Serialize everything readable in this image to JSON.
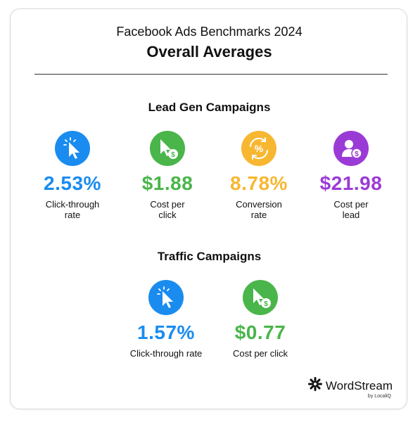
{
  "header": {
    "subtitle": "Facebook Ads Benchmarks 2024",
    "title": "Overall Averages"
  },
  "lead_gen": {
    "heading": "Lead Gen Campaigns",
    "metrics": [
      {
        "value": "2.53%",
        "label": "Click-through\nrate",
        "icon": "cursor-click-icon",
        "color": "#1a8cf0"
      },
      {
        "value": "$1.88",
        "label": "Cost per\nclick",
        "icon": "cursor-dollar-icon",
        "color": "#4ab54a"
      },
      {
        "value": "8.78%",
        "label": "Conversion\nrate",
        "icon": "percent-cycle-icon",
        "color": "#f7b731"
      },
      {
        "value": "$21.98",
        "label": "Cost per\nlead",
        "icon": "user-dollar-icon",
        "color": "#9b3bd6"
      }
    ]
  },
  "traffic": {
    "heading": "Traffic Campaigns",
    "metrics": [
      {
        "value": "1.57%",
        "label": "Click-through rate",
        "icon": "cursor-click-icon",
        "color": "#1a8cf0"
      },
      {
        "value": "$0.77",
        "label": "Cost per click",
        "icon": "cursor-dollar-icon",
        "color": "#4ab54a"
      }
    ]
  },
  "logo": {
    "name": "WordStream",
    "tagline": "by LocaliQ",
    "icon": "wordstream-logo-icon"
  }
}
